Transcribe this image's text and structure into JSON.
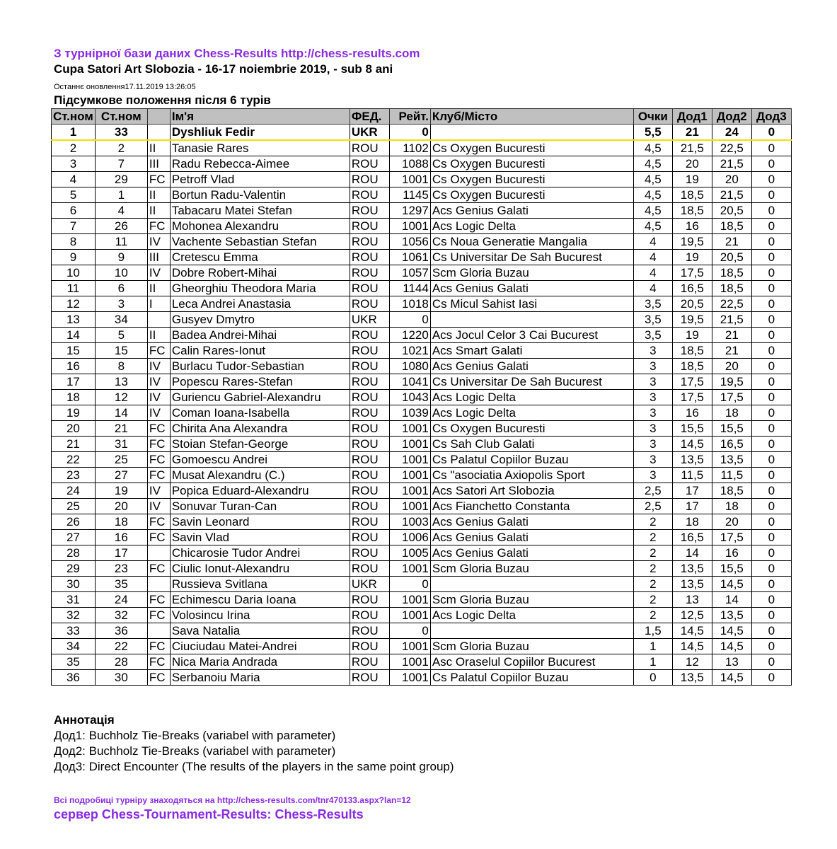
{
  "header": {
    "source_line": "З турнірної бази даних Chess-Results http://chess-results.com",
    "tournament": "Cupa Satori Art Slobozia - 16-17 noiembrie 2019, - sub 8 ani",
    "last_update": "Останнє оновлення17.11.2019 13:26:05",
    "subtitle": "Підсумкове положення після 6 турів"
  },
  "table": {
    "columns": [
      "Ст.ном",
      "Ст.ном",
      "",
      "Ім'я",
      "ФЕД.",
      "Рейт.",
      "Клуб/Місто",
      "Очки",
      "Дод1",
      "Дод2",
      "Дод3"
    ],
    "rows": [
      [
        "1",
        "33",
        "",
        "Dyshliuk Fedir",
        "UKR",
        "0",
        "",
        "5,5",
        "21",
        "24",
        "0"
      ],
      [
        "2",
        "2",
        "II",
        "Tanasie Rares",
        "ROU",
        "1102",
        "Cs Oxygen Bucuresti",
        "4,5",
        "21,5",
        "22,5",
        "0"
      ],
      [
        "3",
        "7",
        "III",
        "Radu Rebecca-Aimee",
        "ROU",
        "1088",
        "Cs Oxygen Bucuresti",
        "4,5",
        "20",
        "21,5",
        "0"
      ],
      [
        "4",
        "29",
        "FC",
        "Petroff Vlad",
        "ROU",
        "1001",
        "Cs Oxygen Bucuresti",
        "4,5",
        "19",
        "20",
        "0"
      ],
      [
        "5",
        "1",
        "II",
        "Bortun Radu-Valentin",
        "ROU",
        "1145",
        "Cs Oxygen Bucuresti",
        "4,5",
        "18,5",
        "21,5",
        "0"
      ],
      [
        "6",
        "4",
        "II",
        "Tabacaru Matei Stefan",
        "ROU",
        "1297",
        "Acs Genius Galati",
        "4,5",
        "18,5",
        "20,5",
        "0"
      ],
      [
        "7",
        "26",
        "FC",
        "Mohonea Alexandru",
        "ROU",
        "1001",
        "Acs Logic Delta",
        "4,5",
        "16",
        "18,5",
        "0"
      ],
      [
        "8",
        "11",
        "IV",
        "Vachente Sebastian Stefan",
        "ROU",
        "1056",
        "Cs Noua Generatie Mangalia",
        "4",
        "19,5",
        "21",
        "0"
      ],
      [
        "9",
        "9",
        "III",
        "Cretescu Emma",
        "ROU",
        "1061",
        "Cs Universitar De Sah Bucurest",
        "4",
        "19",
        "20,5",
        "0"
      ],
      [
        "10",
        "10",
        "IV",
        "Dobre Robert-Mihai",
        "ROU",
        "1057",
        "Scm Gloria Buzau",
        "4",
        "17,5",
        "18,5",
        "0"
      ],
      [
        "11",
        "6",
        "II",
        "Gheorghiu Theodora Maria",
        "ROU",
        "1144",
        "Acs Genius Galati",
        "4",
        "16,5",
        "18,5",
        "0"
      ],
      [
        "12",
        "3",
        "I",
        "Leca Andrei Anastasia",
        "ROU",
        "1018",
        "Cs Micul Sahist Iasi",
        "3,5",
        "20,5",
        "22,5",
        "0"
      ],
      [
        "13",
        "34",
        "",
        "Gusyev Dmytro",
        "UKR",
        "0",
        "",
        "3,5",
        "19,5",
        "21,5",
        "0"
      ],
      [
        "14",
        "5",
        "II",
        "Badea Andrei-Mihai",
        "ROU",
        "1220",
        "Acs Jocul Celor 3 Cai Bucurest",
        "3,5",
        "19",
        "21",
        "0"
      ],
      [
        "15",
        "15",
        "FC",
        "Calin Rares-Ionut",
        "ROU",
        "1021",
        "Acs Smart Galati",
        "3",
        "18,5",
        "21",
        "0"
      ],
      [
        "16",
        "8",
        "IV",
        "Burlacu Tudor-Sebastian",
        "ROU",
        "1080",
        "Acs Genius Galati",
        "3",
        "18,5",
        "20",
        "0"
      ],
      [
        "17",
        "13",
        "IV",
        "Popescu Rares-Stefan",
        "ROU",
        "1041",
        "Cs Universitar De Sah Bucurest",
        "3",
        "17,5",
        "19,5",
        "0"
      ],
      [
        "18",
        "12",
        "IV",
        "Guriencu Gabriel-Alexandru",
        "ROU",
        "1043",
        "Acs Logic Delta",
        "3",
        "17,5",
        "17,5",
        "0"
      ],
      [
        "19",
        "14",
        "IV",
        "Coman Ioana-Isabella",
        "ROU",
        "1039",
        "Acs Logic Delta",
        "3",
        "16",
        "18",
        "0"
      ],
      [
        "20",
        "21",
        "FC",
        "Chirita Ana Alexandra",
        "ROU",
        "1001",
        "Cs Oxygen Bucuresti",
        "3",
        "15,5",
        "15,5",
        "0"
      ],
      [
        "21",
        "31",
        "FC",
        "Stoian Stefan-George",
        "ROU",
        "1001",
        "Cs Sah Club Galati",
        "3",
        "14,5",
        "16,5",
        "0"
      ],
      [
        "22",
        "25",
        "FC",
        "Gomoescu Andrei",
        "ROU",
        "1001",
        "Cs Palatul Copiilor Buzau",
        "3",
        "13,5",
        "13,5",
        "0"
      ],
      [
        "23",
        "27",
        "FC",
        "Musat Alexandru (C.)",
        "ROU",
        "1001",
        "Cs \"asociatia Axiopolis Sport",
        "3",
        "11,5",
        "11,5",
        "0"
      ],
      [
        "24",
        "19",
        "IV",
        "Popica Eduard-Alexandru",
        "ROU",
        "1001",
        "Acs Satori Art Slobozia",
        "2,5",
        "17",
        "18,5",
        "0"
      ],
      [
        "25",
        "20",
        "IV",
        "Sonuvar Turan-Can",
        "ROU",
        "1001",
        "Acs Fianchetto Constanta",
        "2,5",
        "17",
        "18",
        "0"
      ],
      [
        "26",
        "18",
        "FC",
        "Savin Leonard",
        "ROU",
        "1003",
        "Acs Genius Galati",
        "2",
        "18",
        "20",
        "0"
      ],
      [
        "27",
        "16",
        "FC",
        "Savin Vlad",
        "ROU",
        "1006",
        "Acs Genius Galati",
        "2",
        "16,5",
        "17,5",
        "0"
      ],
      [
        "28",
        "17",
        "",
        "Chicarosie Tudor Andrei",
        "ROU",
        "1005",
        "Acs Genius Galati",
        "2",
        "14",
        "16",
        "0"
      ],
      [
        "29",
        "23",
        "FC",
        "Ciulic Ionut-Alexandru",
        "ROU",
        "1001",
        "Scm Gloria Buzau",
        "2",
        "13,5",
        "15,5",
        "0"
      ],
      [
        "30",
        "35",
        "",
        "Russieva Svitlana",
        "UKR",
        "0",
        "",
        "2",
        "13,5",
        "14,5",
        "0"
      ],
      [
        "31",
        "24",
        "FC",
        "Echimescu Daria Ioana",
        "ROU",
        "1001",
        "Scm Gloria Buzau",
        "2",
        "13",
        "14",
        "0"
      ],
      [
        "32",
        "32",
        "FC",
        "Volosincu Irina",
        "ROU",
        "1001",
        "Acs Logic Delta",
        "2",
        "12,5",
        "13,5",
        "0"
      ],
      [
        "33",
        "36",
        "",
        "Sava Natalia",
        "ROU",
        "0",
        "",
        "1,5",
        "14,5",
        "14,5",
        "0"
      ],
      [
        "34",
        "22",
        "FC",
        "Ciuciudau Matei-Andrei",
        "ROU",
        "1001",
        "Scm Gloria Buzau",
        "1",
        "14,5",
        "14,5",
        "0"
      ],
      [
        "35",
        "28",
        "FC",
        "Nica Maria Andrada",
        "ROU",
        "1001",
        "Asc Oraselul Copiilor Bucurest",
        "1",
        "12",
        "13",
        "0"
      ],
      [
        "36",
        "30",
        "FC",
        "Serbanoiu Maria",
        "ROU",
        "1001",
        "Cs Palatul Copiilor Buzau",
        "0",
        "13,5",
        "14,5",
        "0"
      ]
    ]
  },
  "annotation": {
    "title": "Аннотація",
    "lines": [
      "Дод1: Buchholz Tie-Breaks (variabel with parameter)",
      "Дод2: Buchholz Tie-Breaks (variabel with parameter)",
      "Дод3: Direct Encounter (The results of the players in the same point group)"
    ]
  },
  "footer": {
    "details": "Всі подробиці  турніру   знаходяться на http://chess-results.com/tnr470133.aspx?lan=12",
    "server": "сервер Chess-Tournament-Results: Chess-Results"
  },
  "colors": {
    "link_purple": "#8a2be2",
    "header_gray": "#c0c0c0",
    "highlight_yellow": "#f5e000"
  }
}
